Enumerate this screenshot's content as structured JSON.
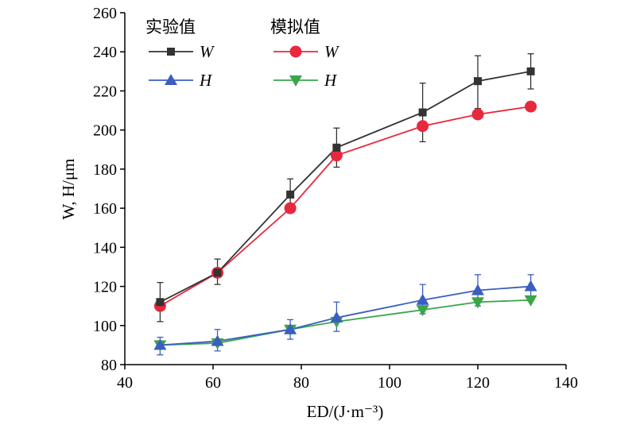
{
  "chart_data": {
    "type": "line",
    "xlabel": "ED/(J·m⁻³)",
    "ylabel": "W, H/μm",
    "xlim": [
      40,
      140
    ],
    "ylim": [
      80,
      260
    ],
    "xticks": [
      40,
      60,
      80,
      100,
      120,
      140
    ],
    "yticks": [
      80,
      100,
      120,
      140,
      160,
      180,
      200,
      220,
      240,
      260
    ],
    "grid": false,
    "legend_position": "top-left",
    "legend_groups": [
      "实验值",
      "模拟值"
    ],
    "x": [
      48,
      61,
      77.5,
      88,
      107.5,
      120,
      132
    ],
    "series": [
      {
        "name": "W",
        "group": "实验值",
        "marker": "square",
        "color": "#333333",
        "values": [
          112,
          127,
          167,
          191,
          209,
          225,
          230
        ],
        "error_low": [
          102,
          121,
          159,
          181,
          194,
          211,
          221
        ],
        "error_high": [
          122,
          134,
          175,
          201,
          224,
          238,
          239
        ]
      },
      {
        "name": "H",
        "group": "实验值",
        "marker": "triangle-up",
        "color": "#3b5fc0",
        "values": [
          90,
          92,
          98,
          104,
          113,
          118,
          120
        ],
        "error_low": [
          85,
          87,
          93,
          97,
          106,
          110,
          113
        ],
        "error_high": [
          94,
          98,
          103,
          112,
          121,
          126,
          126
        ]
      },
      {
        "name": "W",
        "group": "模拟值",
        "marker": "circle",
        "color": "#e8283c",
        "values": [
          110,
          127,
          160,
          187,
          202,
          208,
          212
        ]
      },
      {
        "name": "H",
        "group": "模拟值",
        "marker": "triangle-down",
        "color": "#3aa64a",
        "values": [
          90,
          91,
          98,
          102,
          108,
          112,
          113
        ]
      }
    ]
  }
}
